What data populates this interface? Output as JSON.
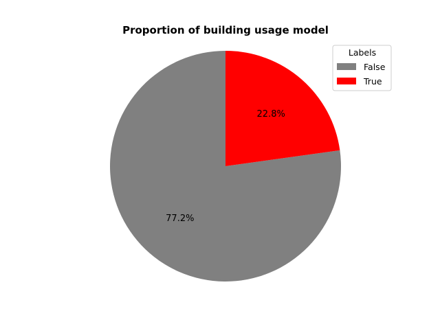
{
  "chart_data": {
    "type": "pie",
    "title": "Proportion of building usage model",
    "slices": [
      {
        "label": "False",
        "value": 77.2,
        "pct_label": "77.2%",
        "color": "#808080"
      },
      {
        "label": "True",
        "value": 22.8,
        "pct_label": "22.8%",
        "color": "#ff0000"
      }
    ],
    "start_angle_deg": 90,
    "direction": "counterclockwise",
    "legend": {
      "title": "Labels",
      "placement": "top-right",
      "entries": [
        "False",
        "True"
      ]
    }
  }
}
